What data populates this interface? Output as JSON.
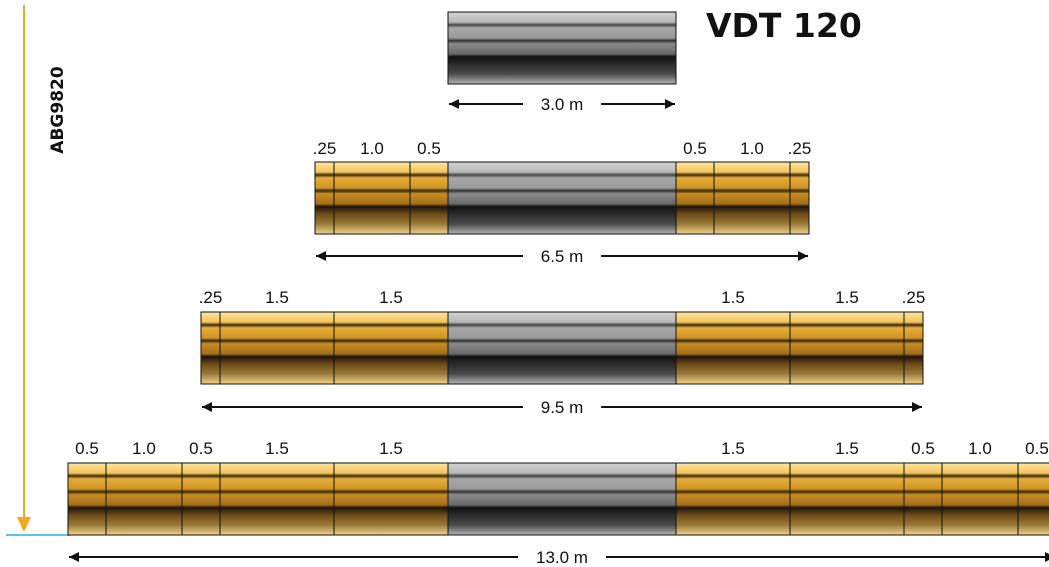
{
  "title": "VDT 120",
  "side_code": "ABG9820",
  "colors": {
    "extension": "#d9a233",
    "extension_light": "#fbdc8a",
    "extension_dark": "#3a2a10",
    "base": "#9c9c9c",
    "base_dark": "#222222",
    "vertical_line": "#f0a81e",
    "ground_line": "#5cc4e8"
  },
  "configurations": [
    {
      "total_label": "3.0 m",
      "base_width": 3.0,
      "left_segments": [],
      "right_segments": []
    },
    {
      "total_label": "6.5 m",
      "base_width": 3.0,
      "left_segments": [
        {
          "label": ".25",
          "value": 0.25
        },
        {
          "label": "1.0",
          "value": 1.0
        },
        {
          "label": "0.5",
          "value": 0.5
        }
      ],
      "right_segments": [
        {
          "label": "0.5",
          "value": 0.5
        },
        {
          "label": "1.0",
          "value": 1.0
        },
        {
          "label": ".25",
          "value": 0.25
        }
      ]
    },
    {
      "total_label": "9.5 m",
      "base_width": 3.0,
      "left_segments": [
        {
          "label": ".25",
          "value": 0.25
        },
        {
          "label": "1.5",
          "value": 1.5
        },
        {
          "label": "1.5",
          "value": 1.5
        }
      ],
      "right_segments": [
        {
          "label": "1.5",
          "value": 1.5
        },
        {
          "label": "1.5",
          "value": 1.5
        },
        {
          "label": ".25",
          "value": 0.25
        }
      ]
    },
    {
      "total_label": "13.0 m",
      "base_width": 3.0,
      "left_segments": [
        {
          "label": "0.5",
          "value": 0.5
        },
        {
          "label": "1.0",
          "value": 1.0
        },
        {
          "label": "0.5",
          "value": 0.5
        },
        {
          "label": "1.5",
          "value": 1.5
        },
        {
          "label": "1.5",
          "value": 1.5
        }
      ],
      "right_segments": [
        {
          "label": "1.5",
          "value": 1.5
        },
        {
          "label": "1.5",
          "value": 1.5
        },
        {
          "label": "0.5",
          "value": 0.5
        },
        {
          "label": "1.0",
          "value": 1.0
        },
        {
          "label": "0.5",
          "value": 0.5
        }
      ]
    }
  ]
}
